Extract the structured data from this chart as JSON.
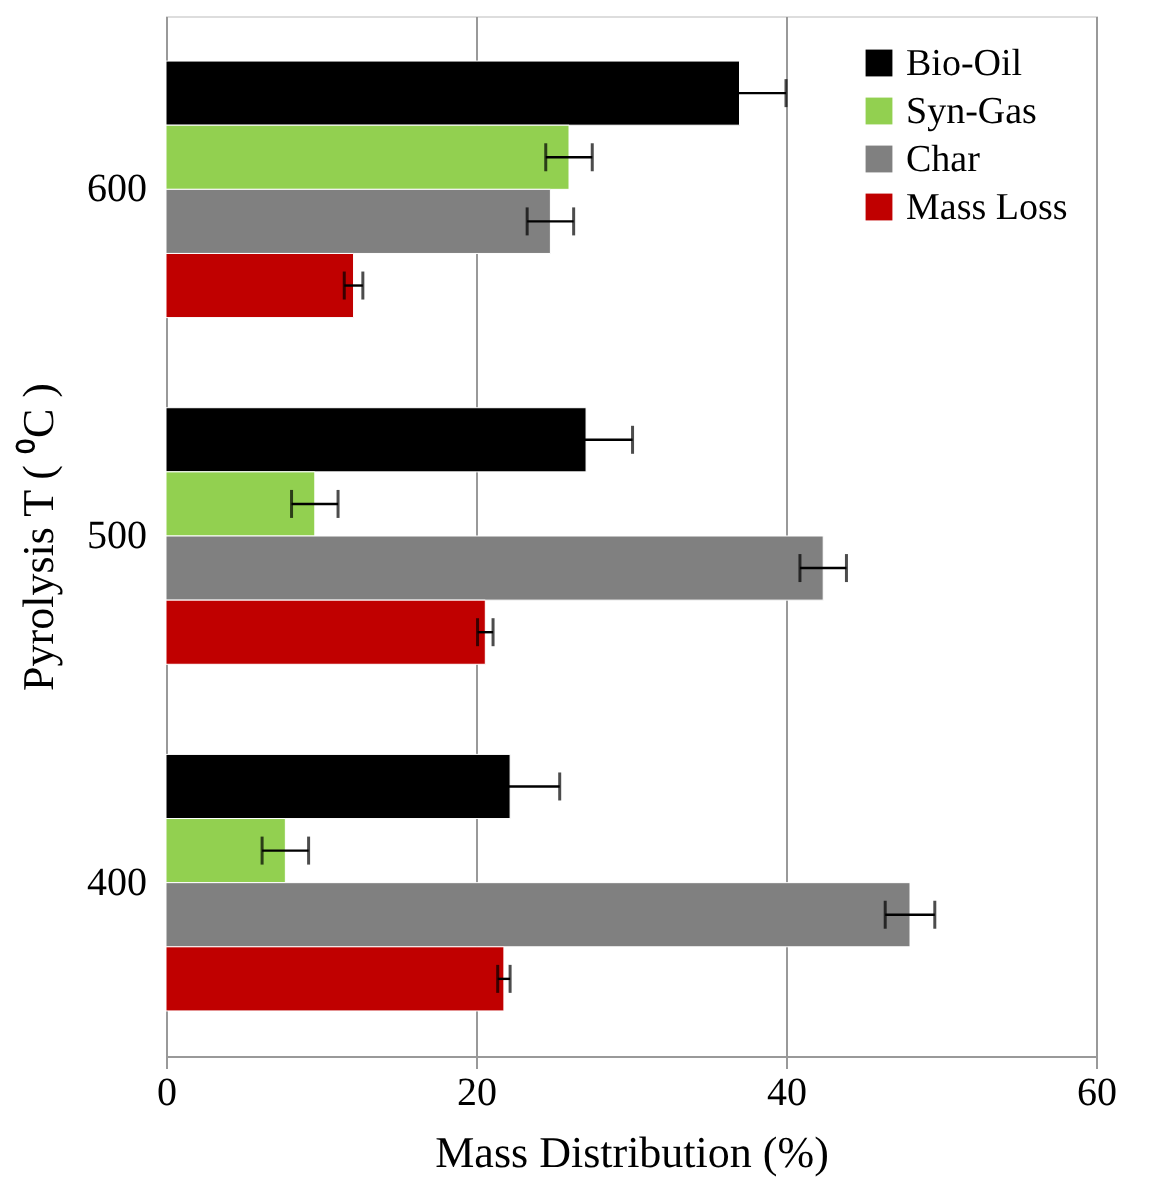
{
  "chart_data": {
    "type": "bar",
    "orientation": "horizontal",
    "xlabel": "Mass Distribution (%)",
    "ylabel": "Pyrolysis T ( ⁰C )",
    "categories": [
      "600",
      "500",
      "400"
    ],
    "series": [
      {
        "name": "Bio-Oil",
        "color": "#000000",
        "values": [
          37.0,
          27.1,
          22.2
        ],
        "errors": [
          3.0,
          3.0,
          3.2
        ]
      },
      {
        "name": "Syn-Gas",
        "color": "#92d050",
        "values": [
          26.0,
          9.6,
          7.7
        ],
        "errors": [
          1.5,
          1.5,
          1.5
        ]
      },
      {
        "name": "Char",
        "color": "#808080",
        "values": [
          24.8,
          42.4,
          48.0
        ],
        "errors": [
          1.5,
          1.5,
          1.6
        ]
      },
      {
        "name": "Mass Loss",
        "color": "#c00000",
        "values": [
          12.1,
          20.6,
          21.8
        ],
        "errors": [
          0.6,
          0.5,
          0.4
        ]
      }
    ],
    "xlim": [
      0,
      60
    ],
    "xticks": [
      0,
      20,
      40,
      60
    ],
    "grid": "x",
    "legend": "top right"
  }
}
